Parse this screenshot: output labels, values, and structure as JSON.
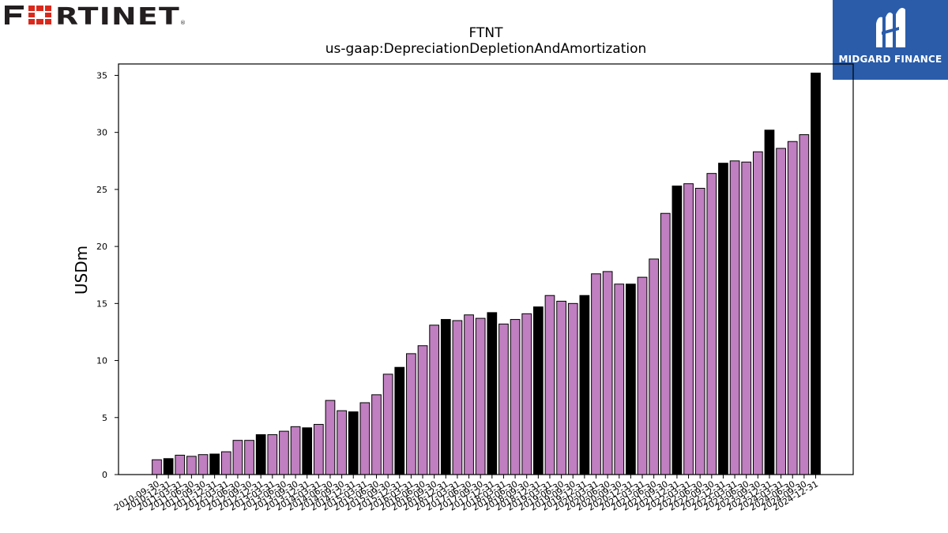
{
  "brand_left": {
    "logo_text": "FORTINET",
    "registered_mark": "®"
  },
  "brand_right": {
    "logo_text": "MIDGARD FINANCE",
    "background_color": "#2a5caa"
  },
  "chart_data": {
    "type": "bar",
    "title": "FTNT",
    "subtitle": "us-gaap:DepreciationDepletionAndAmortization",
    "ylabel": "USDm",
    "xlabel": "",
    "ylim": [
      0,
      36
    ],
    "yticks": [
      0,
      5,
      10,
      15,
      20,
      25,
      30,
      35
    ],
    "colors": {
      "quarter": "#c07fc0",
      "fiscal_year_end": "#000000",
      "edge": "#000000"
    },
    "categories": [
      "2010-09-30",
      "2010-12-31",
      "2011-03-31",
      "2011-06-30",
      "2011-09-30",
      "2011-12-31",
      "2012-03-31",
      "2012-06-30",
      "2012-09-30",
      "2012-12-31",
      "2013-03-31",
      "2013-06-30",
      "2013-09-30",
      "2013-12-31",
      "2014-03-31",
      "2014-06-30",
      "2014-09-30",
      "2014-12-31",
      "2015-03-31",
      "2015-06-30",
      "2015-09-30",
      "2015-12-31",
      "2016-03-31",
      "2016-06-30",
      "2016-09-30",
      "2016-12-31",
      "2017-03-31",
      "2017-06-30",
      "2017-09-30",
      "2017-12-31",
      "2018-03-31",
      "2018-06-30",
      "2018-09-30",
      "2018-12-31",
      "2019-03-31",
      "2019-06-30",
      "2019-09-30",
      "2019-12-31",
      "2020-03-31",
      "2020-06-30",
      "2020-09-30",
      "2020-12-31",
      "2021-03-31",
      "2021-06-30",
      "2021-09-30",
      "2021-12-31",
      "2022-03-31",
      "2022-06-30",
      "2022-09-30",
      "2022-12-31",
      "2023-03-31",
      "2023-06-30",
      "2023-09-30",
      "2023-12-31",
      "2024-03-31",
      "2024-06-30",
      "2024-09-30",
      "2024-12-31"
    ],
    "tick_labels": [
      "2010-09-30",
      "2010-12-31",
      "2011-03-31",
      "2011-06-30",
      "2011-09-30",
      "2011-12-31",
      "2012-03-31",
      "2012-06-30",
      "2012-09-30",
      "2012-12-31",
      "2013-03-31",
      "2013-06-30",
      "2013-09-30",
      "2013-12-31",
      "2014-03-31",
      "2014-06-30",
      "2014-09-30",
      "2014-12-31",
      "2015-03-31",
      "2015-06-30",
      "2015-09-30",
      "2015-12-31",
      "2016-03-31",
      "2016-06-30",
      "2016-09-30",
      "2016-12-31",
      "2017-03-31",
      "2017-06-30",
      "2017-09-30",
      "2017-12-31",
      "2018-03-31",
      "2018-06-30",
      "2018-09-30",
      "2018-12-31",
      "2019-03-31",
      "2019-06-30",
      "2019-09-30",
      "2019-12-31",
      "2020-03-31",
      "2020-06-30",
      "2020-09-30",
      "2020-12-31",
      "2021-03-31",
      "2021-06-30",
      "2021-09-30",
      "2021-12-31",
      "2022-03-31",
      "2022-06-30",
      "2022-09-30",
      "2022-12-31",
      "2023-03-31",
      "2023-06-30",
      "2023-09-30",
      "2023-12-31",
      "2024-03-31",
      "2024-06-30",
      "2024-09-30",
      "2024-12-31"
    ],
    "values": [
      1.3,
      1.4,
      1.7,
      1.6,
      1.75,
      1.8,
      2.0,
      3.0,
      3.0,
      3.5,
      3.5,
      3.8,
      4.2,
      4.1,
      4.4,
      6.5,
      5.6,
      5.5,
      6.3,
      7.0,
      8.8,
      9.4,
      10.6,
      11.3,
      13.1,
      13.6,
      13.5,
      14.0,
      13.7,
      14.2,
      13.2,
      13.6,
      14.1,
      14.7,
      15.7,
      15.2,
      15.0,
      15.7,
      17.6,
      17.8,
      16.7,
      16.7,
      17.3,
      18.9,
      22.9,
      25.3,
      25.5,
      25.1,
      26.4,
      27.3,
      27.5,
      27.4,
      28.3,
      30.2,
      28.6,
      29.2,
      29.8,
      35.2
    ],
    "fiscal_year_end": [
      false,
      true,
      false,
      false,
      false,
      true,
      false,
      false,
      false,
      true,
      false,
      false,
      false,
      true,
      false,
      false,
      false,
      true,
      false,
      false,
      false,
      true,
      false,
      false,
      false,
      true,
      false,
      false,
      false,
      true,
      false,
      false,
      false,
      true,
      false,
      false,
      false,
      true,
      false,
      false,
      false,
      true,
      false,
      false,
      false,
      true,
      false,
      false,
      false,
      true,
      false,
      false,
      false,
      true,
      false,
      false,
      false,
      true
    ]
  }
}
